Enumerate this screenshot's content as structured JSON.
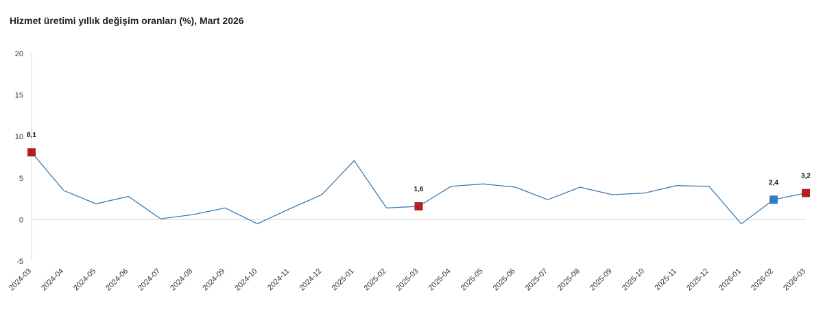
{
  "chart_data": {
    "type": "line",
    "title": "Hizmet üretimi yıllık değişim oranları (%), Mart 2026",
    "xlabel": "",
    "ylabel": "",
    "ylim": [
      -5,
      20
    ],
    "yticks": [
      20,
      15,
      10,
      5,
      0,
      -5
    ],
    "grid": false,
    "categories": [
      "2024-03",
      "2024-04",
      "2024-05",
      "2024-06",
      "2024-07",
      "2024-08",
      "2024-09",
      "2024-10",
      "2024-11",
      "2024-12",
      "2025-01",
      "2025-02",
      "2025-03",
      "2025-04",
      "2025-05",
      "2025-06",
      "2025-07",
      "2025-08",
      "2025-09",
      "2025-10",
      "2025-11",
      "2025-12",
      "2026-01",
      "2026-02",
      "2026-03"
    ],
    "series": [
      {
        "values": [
          8.1,
          3.5,
          1.9,
          2.8,
          0.1,
          0.6,
          1.4,
          -0.5,
          1.3,
          3.0,
          7.1,
          1.4,
          1.6,
          4.0,
          4.3,
          3.9,
          2.4,
          3.9,
          3.0,
          3.2,
          4.1,
          4.0,
          -0.5,
          2.4,
          3.2
        ]
      }
    ],
    "line_color": "#3b7bb5",
    "highlights": [
      {
        "index": 0,
        "label": "8,1",
        "color": "#b51e23"
      },
      {
        "index": 12,
        "label": "1,6",
        "color": "#b51e23"
      },
      {
        "index": 23,
        "label": "2,4",
        "color": "#2f7ec1"
      },
      {
        "index": 24,
        "label": "3,2",
        "color": "#b51e23"
      }
    ]
  }
}
